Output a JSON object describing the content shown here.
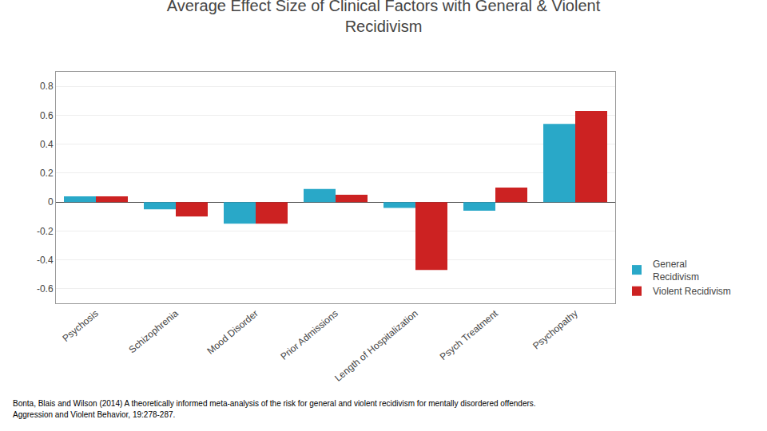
{
  "chart_data": {
    "type": "bar",
    "title": "Average Effect Size of Clinical Factors with General & Violent\nRecidivism",
    "categories": [
      "Psychosis",
      "Schizophrenia",
      "Mood Disorder",
      "Prior Admissions",
      "Length of Hospitalization",
      "Psych Treatment",
      "Psychopathy"
    ],
    "series": [
      {
        "name": "General\nRecidivism",
        "color": "#29A8C8",
        "values": [
          0.04,
          -0.05,
          -0.15,
          0.09,
          -0.04,
          -0.06,
          0.54
        ]
      },
      {
        "name": "Violent Recidivism",
        "color": "#CC2222",
        "values": [
          0.04,
          -0.1,
          -0.15,
          0.05,
          -0.47,
          0.1,
          0.63
        ]
      }
    ],
    "ylim": [
      -0.7,
      0.9
    ],
    "yticks": [
      -0.6,
      -0.4,
      -0.2,
      0,
      0.2,
      0.4,
      0.6,
      0.8
    ],
    "grid": true,
    "legend": "lower right",
    "annotations": [
      "Bonta, Blais and Wilson (2014) A theoretically informed meta-analysis of the risk for general and violent recidivism for mentally disordered offenders.",
      "Aggression and Violent Behavior, 19:278-287."
    ]
  }
}
